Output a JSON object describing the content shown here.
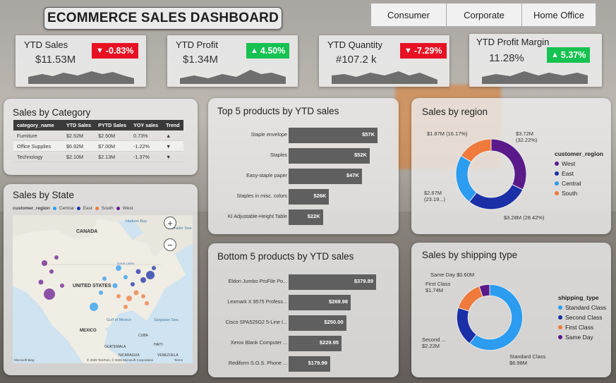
{
  "title": "ECOMMERCE SALES DASHBOARD",
  "segments": [
    "Consumer",
    "Corporate",
    "Home Office"
  ],
  "kpis": [
    {
      "title": "YTD Sales",
      "value": "$11.53M",
      "change": "-0.83%",
      "direction": "down"
    },
    {
      "title": "YTD Profit",
      "value": "$1.34M",
      "change": "4.50%",
      "direction": "up"
    },
    {
      "title": "YTD Quantity",
      "value": "#107.2 k",
      "change": "-7.29%",
      "direction": "down"
    },
    {
      "title": "YTD Profit Margin",
      "value": "11.28%",
      "change": "5.37%",
      "direction": "up"
    }
  ],
  "sales_by_category": {
    "title": "Sales by Category",
    "columns": [
      "category_name",
      "YTD Sales",
      "PYTD Sales",
      "YOY sales",
      "Trend"
    ],
    "rows": [
      {
        "category": "Furniture",
        "ytd": "$2.52M",
        "pytd": "$2.50M",
        "yoy": "0.73%",
        "trend": "up"
      },
      {
        "category": "Office Supplies",
        "ytd": "$6.92M",
        "pytd": "$7.00M",
        "yoy": "-1.22%",
        "trend": "down"
      },
      {
        "category": "Technology",
        "ytd": "$2.10M",
        "pytd": "$2.13M",
        "yoy": "-1.37%",
        "trend": "down"
      }
    ]
  },
  "sales_by_state": {
    "title": "Sales by State",
    "legend_title": "customer_region",
    "legend": [
      {
        "name": "Central",
        "color": "#2b9cf0"
      },
      {
        "name": "East",
        "color": "#1a2fa8"
      },
      {
        "name": "South",
        "color": "#ef7a3b"
      },
      {
        "name": "West",
        "color": "#6b1d8f"
      }
    ],
    "map_labels": [
      "CANADA",
      "UNITED STATES",
      "MEXICO",
      "Hudson Bay",
      "Gulf of Mexico",
      "Sargasso Sea",
      "GUATEMALA",
      "CUBA",
      "HAITI",
      "NICARAGUA",
      "VENEZUELA",
      "Labrador Sea",
      "Great Lakes"
    ],
    "attribution": "© 2025 TomTom, © 2025 Microsoft Corporation",
    "terms": "Terms",
    "bing": "Microsoft Bing",
    "zoom_in": "+",
    "zoom_out": "−"
  },
  "top5": {
    "title": "Top 5 products by YTD sales",
    "chart_data": {
      "type": "bar",
      "categories": [
        "Staple envelope",
        "Staples",
        "Easy-staple paper",
        "Staples in misc. colors",
        "KI Adjustable-Height Table"
      ],
      "values": [
        57,
        52,
        47,
        26,
        22
      ],
      "labels": [
        "$57K",
        "$52K",
        "$47K",
        "$26K",
        "$22K"
      ]
    }
  },
  "bottom5": {
    "title": "Bottom 5 products by YTD sales",
    "chart_data": {
      "type": "bar",
      "categories": [
        "Eldon Jumbo ProFile Po...",
        "Lexmark X 9575 Profess...",
        "Cisco SPA525G2 5-Line I...",
        "Xerox Blank Computer ...",
        "Rediform S.O.S. Phone ..."
      ],
      "values": [
        379.89,
        269.98,
        250.0,
        229.95,
        179.99
      ],
      "labels": [
        "$379.89",
        "$269.98",
        "$250.00",
        "$229.95",
        "$179.99"
      ]
    }
  },
  "sales_by_region": {
    "title": "Sales by region",
    "legend_title": "customer_region",
    "chart_data": {
      "type": "pie",
      "series": [
        {
          "name": "West",
          "value": 3.72,
          "label": "$3.72M\n(32.22%)",
          "color": "#5a1a8a"
        },
        {
          "name": "East",
          "value": 3.28,
          "label": "$3.28M (28.42%)",
          "color": "#1b2fa6"
        },
        {
          "name": "Central",
          "value": 2.67,
          "label": "$2.67M\n(23.19...)",
          "color": "#2b9cf0"
        },
        {
          "name": "South",
          "value": 1.87,
          "label": "$1.87M (16.17%)",
          "color": "#ef7a3b"
        }
      ]
    }
  },
  "sales_by_shipping": {
    "title": "Sales by shipping type",
    "legend_title": "shipping_type",
    "chart_data": {
      "type": "pie",
      "series": [
        {
          "name": "Standard Class",
          "value": 6.98,
          "label": "Standard Class\n$6.98M",
          "color": "#2b9cf0"
        },
        {
          "name": "Second Class",
          "value": 2.22,
          "label": "Second ...\n$2.22M",
          "color": "#1b2fa6"
        },
        {
          "name": "First Class",
          "value": 1.74,
          "label": "First Class\n$1.74M",
          "color": "#ef7a3b"
        },
        {
          "name": "Same Day",
          "value": 0.6,
          "label": "Same Day $0.60M",
          "color": "#5a1a8a"
        }
      ]
    }
  }
}
